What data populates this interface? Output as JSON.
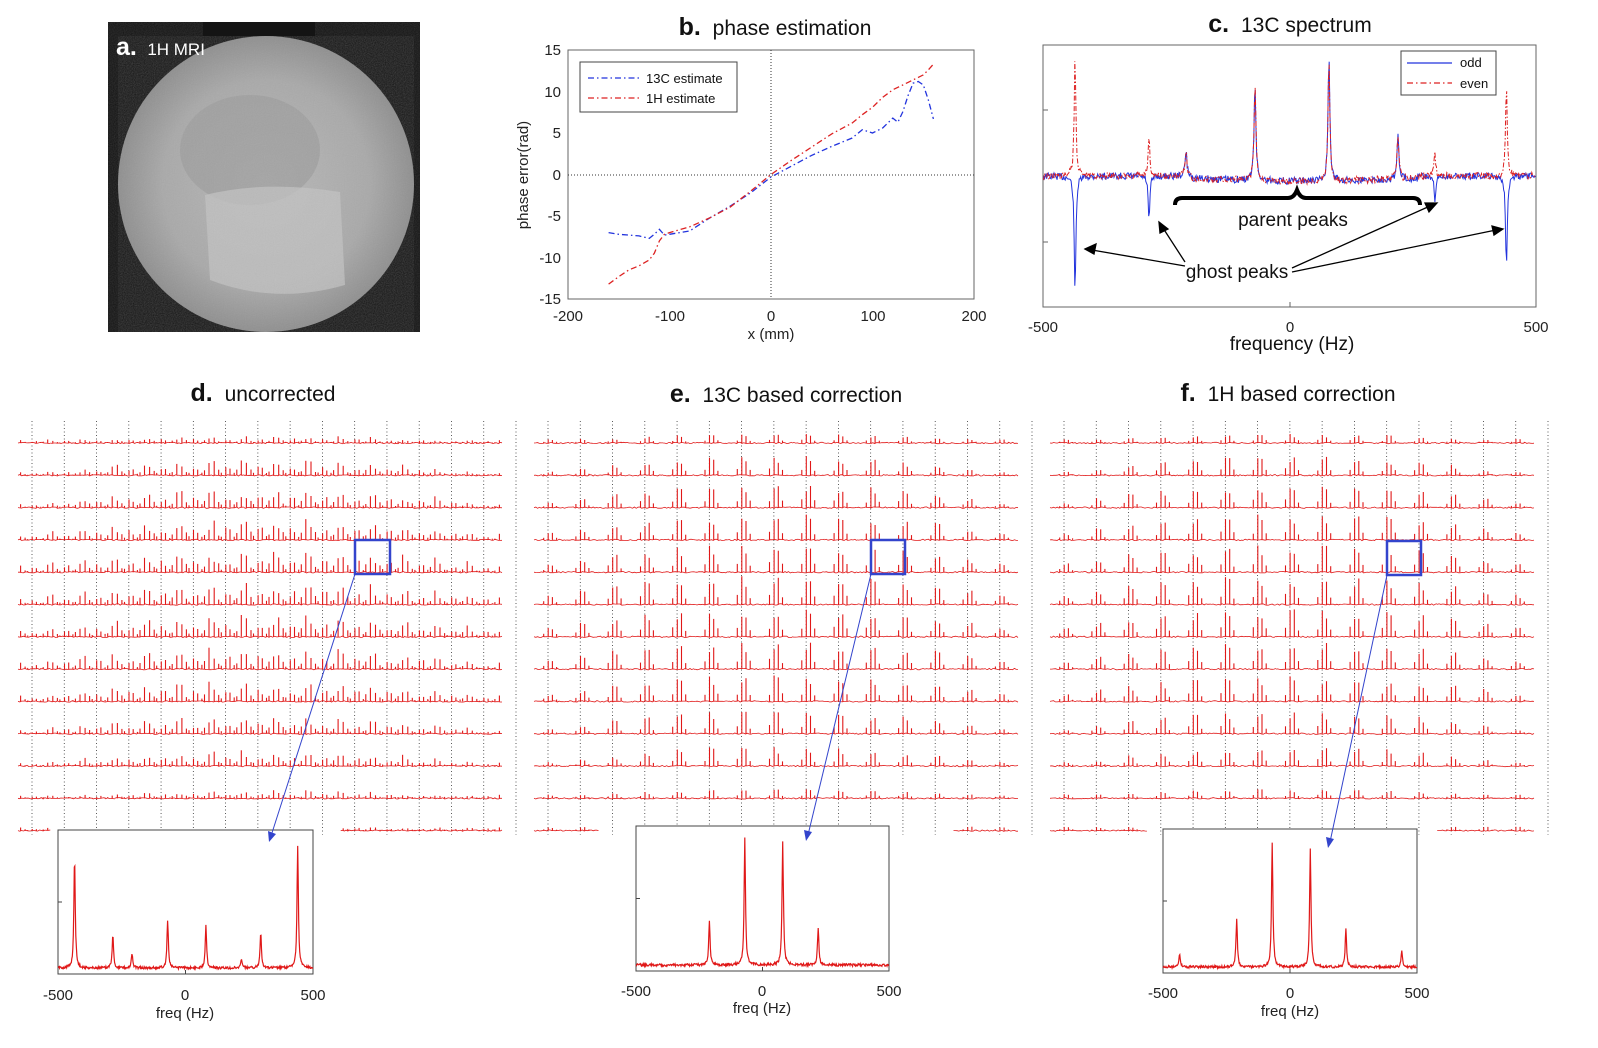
{
  "chart_data": [
    {
      "panel": "a",
      "type": "image",
      "letter": "a.",
      "title": "1H MRI"
    },
    {
      "panel": "b",
      "type": "line",
      "letter": "b.",
      "title": "phase estimation",
      "xlabel": "x (mm)",
      "ylabel": "phase error(rad)",
      "xlim": [
        -200,
        200
      ],
      "ylim": [
        -15,
        15
      ],
      "xticks": [
        "-200",
        "-100",
        "0",
        "100",
        "200"
      ],
      "yticks": [
        "15",
        "10",
        "5",
        "0",
        "-5",
        "-10",
        "-15"
      ],
      "legend": [
        "13C estimate",
        "1H estimate"
      ],
      "series": [
        {
          "name": "13C estimate",
          "color": "#2233dd",
          "x": [
            -160,
            -150,
            -140,
            -130,
            -120,
            -115,
            -110,
            -105,
            -100,
            -80,
            -60,
            -40,
            -20,
            0,
            20,
            40,
            60,
            80,
            90,
            100,
            110,
            120,
            125,
            130,
            135,
            140,
            145,
            150,
            155,
            160
          ],
          "y": [
            -7,
            -7.2,
            -7.3,
            -7.4,
            -7.7,
            -7.2,
            -6.6,
            -7.3,
            -7.2,
            -6.8,
            -5.2,
            -3.8,
            -2.2,
            -0.3,
            1.0,
            2.3,
            3.4,
            4.4,
            5.4,
            5.0,
            5.6,
            6.8,
            6.3,
            7.6,
            9.5,
            11.0,
            11.2,
            10.8,
            9.0,
            6.7
          ]
        },
        {
          "name": "1H estimate",
          "color": "#dd2222",
          "x": [
            -160,
            -150,
            -140,
            -130,
            -120,
            -115,
            -110,
            -105,
            -100,
            -80,
            -60,
            -40,
            -20,
            0,
            20,
            40,
            60,
            80,
            90,
            100,
            110,
            120,
            125,
            130,
            135,
            140,
            145,
            150,
            155,
            160
          ],
          "y": [
            -13.2,
            -12.3,
            -11.5,
            -11.0,
            -10.3,
            -9.5,
            -8.0,
            -7.2,
            -7.0,
            -6.3,
            -5.2,
            -3.9,
            -2.0,
            0,
            1.7,
            3.3,
            4.9,
            6.2,
            7.2,
            8.1,
            9.3,
            10.2,
            10.5,
            10.8,
            11.1,
            11.4,
            11.7,
            12.0,
            12.6,
            13.3
          ]
        }
      ]
    },
    {
      "panel": "c",
      "type": "line",
      "letter": "c.",
      "title": "13C spectrum",
      "xlabel": "frequency (Hz)",
      "xlim": [
        -500,
        500
      ],
      "xticks": [
        "-500",
        "0",
        "500"
      ],
      "legend": [
        "odd",
        "even"
      ],
      "annotations": [
        "parent peaks",
        "ghost peaks"
      ],
      "parent_peaks_hz": [
        -210,
        -70,
        80,
        220
      ],
      "ghost_peaks_hz": [
        -435,
        -285,
        295,
        440
      ],
      "series": [
        {
          "name": "odd",
          "color": "#2233dd"
        },
        {
          "name": "even",
          "color": "#dd2222"
        }
      ]
    },
    {
      "panel": "d",
      "type": "line",
      "letter": "d.",
      "title": "uncorrected",
      "grid_cols": 15,
      "grid_rows": 13,
      "inset_xlabel": "freq (Hz)",
      "inset_xticks": [
        "-500",
        "0",
        "500"
      ],
      "inset_peaks": [
        {
          "f": -435,
          "h": 0.85
        },
        {
          "f": -285,
          "h": 0.26
        },
        {
          "f": -210,
          "h": 0.11
        },
        {
          "f": -70,
          "h": 0.36
        },
        {
          "f": 80,
          "h": 0.33
        },
        {
          "f": 220,
          "h": 0.07
        },
        {
          "f": 295,
          "h": 0.28
        },
        {
          "f": 440,
          "h": 0.93
        }
      ]
    },
    {
      "panel": "e",
      "type": "line",
      "letter": "e.",
      "title": "13C based correction",
      "grid_cols": 15,
      "grid_rows": 13,
      "inset_xlabel": "freq (Hz)",
      "inset_xticks": [
        "-500",
        "0",
        "500"
      ],
      "inset_peaks": [
        {
          "f": -210,
          "h": 0.34
        },
        {
          "f": -70,
          "h": 0.95
        },
        {
          "f": 80,
          "h": 0.92
        },
        {
          "f": 220,
          "h": 0.28
        }
      ]
    },
    {
      "panel": "f",
      "type": "line",
      "letter": "f.",
      "title": "1H based correction",
      "grid_cols": 15,
      "grid_rows": 13,
      "inset_xlabel": "freq (Hz)",
      "inset_xticks": [
        "-500",
        "0",
        "500"
      ],
      "inset_peaks": [
        {
          "f": -435,
          "h": 0.1
        },
        {
          "f": -210,
          "h": 0.36
        },
        {
          "f": -70,
          "h": 0.95
        },
        {
          "f": 80,
          "h": 0.9
        },
        {
          "f": 220,
          "h": 0.3
        },
        {
          "f": 440,
          "h": 0.12
        }
      ]
    }
  ]
}
